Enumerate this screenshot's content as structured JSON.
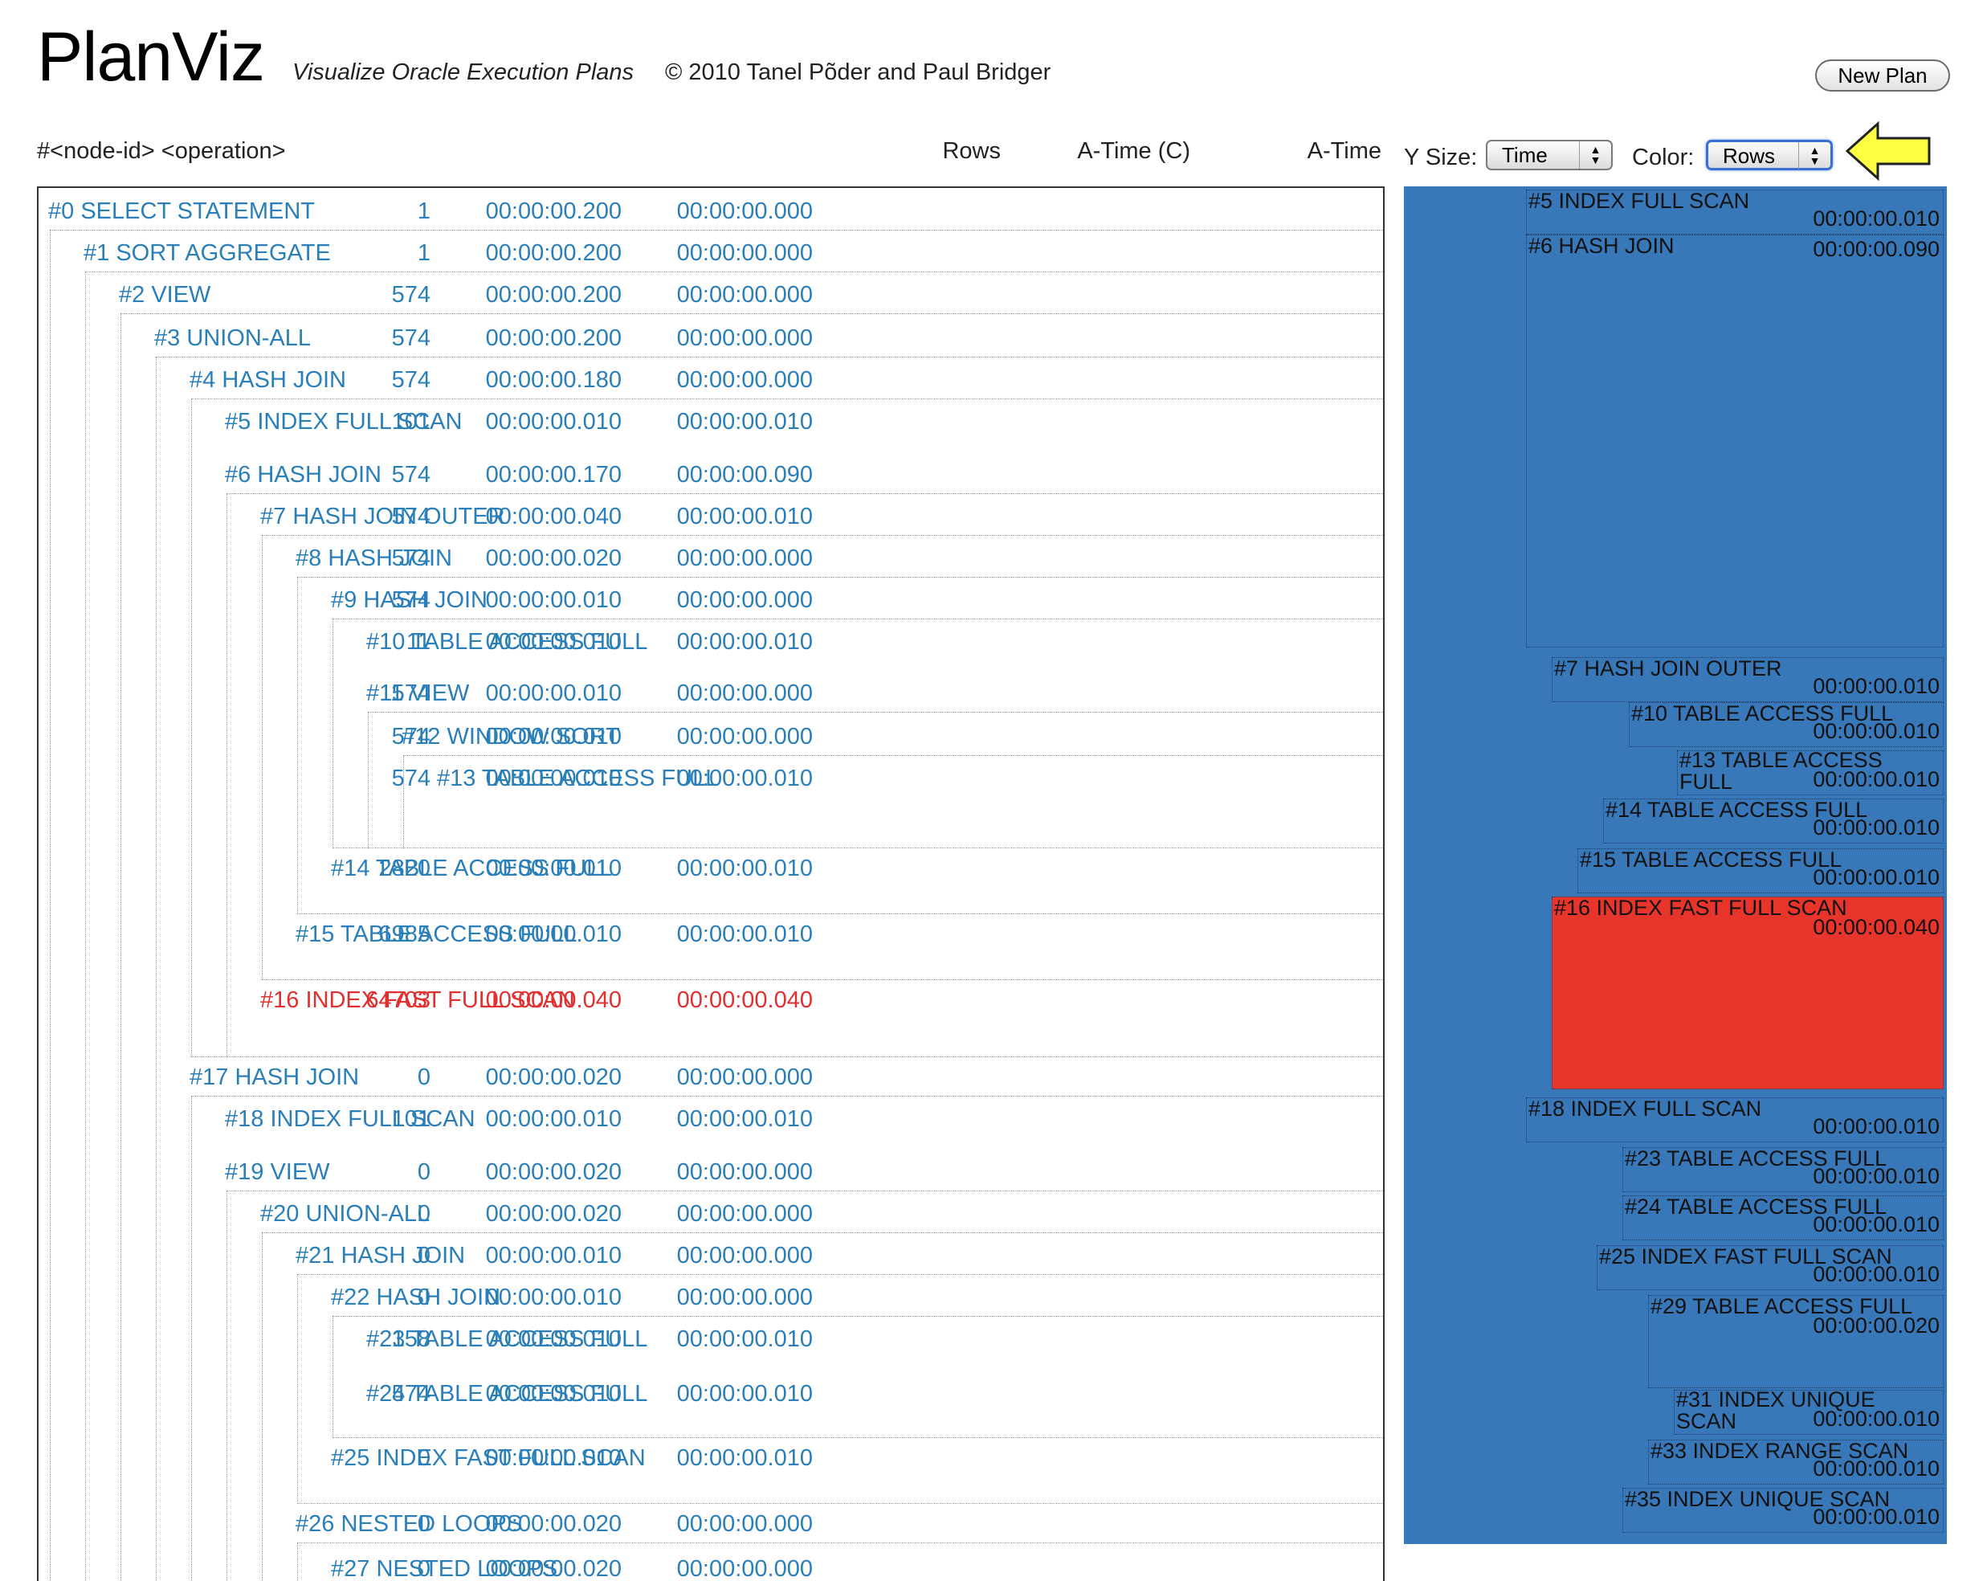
{
  "header": {
    "title": "PlanViz",
    "subtitle": "Visualize Oracle Execution Plans",
    "copyright": "© 2010 Tanel Põder and Paul Bridger",
    "new_plan_label": "New Plan"
  },
  "columns": {
    "operation": "#<node-id> <operation>",
    "rows": "Rows",
    "atime_c": "A-Time (C)",
    "atime": "A-Time"
  },
  "controls": {
    "ysize_label": "Y Size:",
    "ysize_value": "Time",
    "color_label": "Color:",
    "color_value": "Rows",
    "pointer_icon": "arrow-left-icon",
    "pointer_color": "#ffff44"
  },
  "colors": {
    "link": "#2a7fb8",
    "highlight": "#e03030",
    "timeline_bg": "#3878b8",
    "timeline_hot": "#e8352c"
  },
  "plan": [
    {
      "id": 0,
      "label": "#0 SELECT STATEMENT",
      "rows": "1",
      "atime_c": "00:00:00.200",
      "atime": "00:00:00.000",
      "depth": 0,
      "highlight": false
    },
    {
      "id": 1,
      "label": "#1 SORT AGGREGATE",
      "rows": "1",
      "atime_c": "00:00:00.200",
      "atime": "00:00:00.000",
      "depth": 1,
      "highlight": false
    },
    {
      "id": 2,
      "label": "#2 VIEW",
      "rows": "574",
      "atime_c": "00:00:00.200",
      "atime": "00:00:00.000",
      "depth": 2,
      "highlight": false
    },
    {
      "id": 3,
      "label": "#3 UNION-ALL",
      "rows": "574",
      "atime_c": "00:00:00.200",
      "atime": "00:00:00.000",
      "depth": 3,
      "highlight": false
    },
    {
      "id": 4,
      "label": "#4 HASH JOIN",
      "rows": "574",
      "atime_c": "00:00:00.180",
      "atime": "00:00:00.000",
      "depth": 4,
      "highlight": false
    },
    {
      "id": 5,
      "label": "#5 INDEX FULL SCAN",
      "rows": "101",
      "atime_c": "00:00:00.010",
      "atime": "00:00:00.010",
      "depth": 5,
      "highlight": false
    },
    {
      "id": 6,
      "label": "#6 HASH JOIN",
      "rows": "574",
      "atime_c": "00:00:00.170",
      "atime": "00:00:00.090",
      "depth": 5,
      "highlight": false
    },
    {
      "id": 7,
      "label": "#7 HASH JOIN OUTER",
      "rows": "574",
      "atime_c": "00:00:00.040",
      "atime": "00:00:00.010",
      "depth": 6,
      "highlight": false
    },
    {
      "id": 8,
      "label": "#8 HASH JOIN",
      "rows": "574",
      "atime_c": "00:00:00.020",
      "atime": "00:00:00.000",
      "depth": 7,
      "highlight": false
    },
    {
      "id": 9,
      "label": "#9 HASH JOIN",
      "rows": "574",
      "atime_c": "00:00:00.010",
      "atime": "00:00:00.000",
      "depth": 8,
      "highlight": false
    },
    {
      "id": 10,
      "label": "#10 TABLE ACCESS FULL",
      "rows": "11",
      "atime_c": "00:00:00.010",
      "atime": "00:00:00.010",
      "depth": 9,
      "highlight": false
    },
    {
      "id": 11,
      "label": "#11 VIEW",
      "rows": "574",
      "atime_c": "00:00:00.010",
      "atime": "00:00:00.000",
      "depth": 9,
      "highlight": false
    },
    {
      "id": 12,
      "label": "#12 WINDOW SORT",
      "rows": "574",
      "atime_c": "00:00:00.010",
      "atime": "00:00:00.000",
      "depth": 10,
      "highlight": false
    },
    {
      "id": 13,
      "label": "#13 TABLE ACCESS FULL",
      "rows": "574",
      "atime_c": "00:00:00.010",
      "atime": "00:00:00.010",
      "depth": 11,
      "highlight": false
    },
    {
      "id": 14,
      "label": "#14 TABLE ACCESS FULL",
      "rows": "2820",
      "atime_c": "00:00:00.010",
      "atime": "00:00:00.010",
      "depth": 8,
      "highlight": false
    },
    {
      "id": 15,
      "label": "#15 TABLE ACCESS FULL",
      "rows": "6985",
      "atime_c": "00:00:00.010",
      "atime": "00:00:00.010",
      "depth": 7,
      "highlight": false
    },
    {
      "id": 16,
      "label": "#16 INDEX FAST FULL SCAN",
      "rows": "64703",
      "atime_c": "00:00:00.040",
      "atime": "00:00:00.040",
      "depth": 6,
      "highlight": true
    },
    {
      "id": 17,
      "label": "#17 HASH JOIN",
      "rows": "0",
      "atime_c": "00:00:00.020",
      "atime": "00:00:00.000",
      "depth": 4,
      "highlight": false
    },
    {
      "id": 18,
      "label": "#18 INDEX FULL SCAN",
      "rows": "101",
      "atime_c": "00:00:00.010",
      "atime": "00:00:00.010",
      "depth": 5,
      "highlight": false
    },
    {
      "id": 19,
      "label": "#19 VIEW",
      "rows": "0",
      "atime_c": "00:00:00.020",
      "atime": "00:00:00.000",
      "depth": 5,
      "highlight": false
    },
    {
      "id": 20,
      "label": "#20 UNION-ALL",
      "rows": "0",
      "atime_c": "00:00:00.020",
      "atime": "00:00:00.000",
      "depth": 6,
      "highlight": false
    },
    {
      "id": 21,
      "label": "#21 HASH JOIN",
      "rows": "0",
      "atime_c": "00:00:00.010",
      "atime": "00:00:00.000",
      "depth": 7,
      "highlight": false
    },
    {
      "id": 22,
      "label": "#22 HASH JOIN",
      "rows": "0",
      "atime_c": "00:00:00.010",
      "atime": "00:00:00.000",
      "depth": 8,
      "highlight": false
    },
    {
      "id": 23,
      "label": "#23 TABLE ACCESS FULL",
      "rows": "158",
      "atime_c": "00:00:00.010",
      "atime": "00:00:00.010",
      "depth": 9,
      "highlight": false
    },
    {
      "id": 24,
      "label": "#24 TABLE ACCESS FULL",
      "rows": "574",
      "atime_c": "00:00:00.010",
      "atime": "00:00:00.010",
      "depth": 9,
      "highlight": false
    },
    {
      "id": 25,
      "label": "#25 INDEX FAST FULL SCAN",
      "rows": "0",
      "atime_c": "00:00:00.010",
      "atime": "00:00:00.010",
      "depth": 8,
      "highlight": false
    },
    {
      "id": 26,
      "label": "#26 NESTED LOOPS",
      "rows": "0",
      "atime_c": "00:00:00.020",
      "atime": "00:00:00.000",
      "depth": 7,
      "highlight": false
    },
    {
      "id": 27,
      "label": "#27 NESTED LOOPS",
      "rows": "0",
      "atime_c": "00:00:00.020",
      "atime": "00:00:00.000",
      "depth": 8,
      "highlight": false
    }
  ],
  "timeline": [
    {
      "name": "#5 INDEX FULL SCAN",
      "time": "00:00:00.010",
      "hot": false
    },
    {
      "name": "#6 HASH JOIN",
      "time": "00:00:00.090",
      "hot": false
    },
    {
      "name": "#7 HASH JOIN OUTER",
      "time": "00:00:00.010",
      "hot": false
    },
    {
      "name": "#10 TABLE ACCESS FULL",
      "time": "00:00:00.010",
      "hot": false
    },
    {
      "name": "#13 TABLE ACCESS FULL",
      "time": "00:00:00.010",
      "hot": false
    },
    {
      "name": "#14 TABLE ACCESS FULL",
      "time": "00:00:00.010",
      "hot": false
    },
    {
      "name": "#15 TABLE ACCESS FULL",
      "time": "00:00:00.010",
      "hot": false
    },
    {
      "name": "#16 INDEX FAST FULL SCAN",
      "time": "00:00:00.040",
      "hot": true
    },
    {
      "name": "#18 INDEX FULL SCAN",
      "time": "00:00:00.010",
      "hot": false
    },
    {
      "name": "#23 TABLE ACCESS FULL",
      "time": "00:00:00.010",
      "hot": false
    },
    {
      "name": "#24 TABLE ACCESS FULL",
      "time": "00:00:00.010",
      "hot": false
    },
    {
      "name": "#25 INDEX FAST FULL SCAN",
      "time": "00:00:00.010",
      "hot": false
    },
    {
      "name": "#29 TABLE ACCESS FULL",
      "time": "00:00:00.020",
      "hot": false
    },
    {
      "name": "#31 INDEX UNIQUE SCAN",
      "time": "00:00:00.010",
      "hot": false
    },
    {
      "name": "#33 INDEX RANGE SCAN",
      "time": "00:00:00.010",
      "hot": false
    },
    {
      "name": "#35 INDEX UNIQUE SCAN",
      "time": "00:00:00.010",
      "hot": false
    }
  ]
}
